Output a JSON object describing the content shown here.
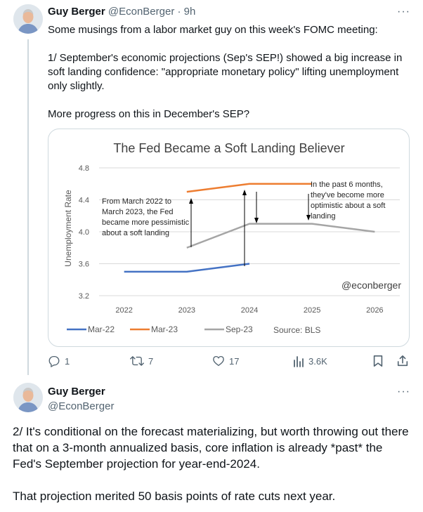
{
  "tweet1": {
    "author_name": "Guy Berger",
    "author_handle": "@EconBerger",
    "separator": "·",
    "time": "9h",
    "more": "···",
    "text": "Some musings from a labor market guy on this week's FOMC meeting:\n\n1/ September's economic projections (Sep's SEP!) showed a big increase in soft landing confidence: \"appropriate monetary policy\" lifting unemployment only slightly.\n\nMore progress on this in December's SEP?",
    "replies": "1",
    "retweets": "7",
    "likes": "17",
    "views": "3.6K"
  },
  "chart_data": {
    "type": "line",
    "title": "The Fed Became a Soft Landing Believer",
    "ylabel": "Unemployment Rate",
    "ylim": [
      3.2,
      4.8
    ],
    "yticks": [
      "4.8",
      "4.4",
      "4.0",
      "3.6",
      "3.2"
    ],
    "ytick_values": [
      4.8,
      4.4,
      4.0,
      3.6,
      3.2
    ],
    "xlim": [
      2021.6,
      2026.4
    ],
    "xticks": [
      "2022",
      "2023",
      "2024",
      "2025",
      "2026"
    ],
    "xtick_values": [
      2022,
      2023,
      2024,
      2025,
      2026
    ],
    "series": [
      {
        "name": "Mar-22",
        "color": "#4472c4",
        "x": [
          2022,
          2023,
          2024
        ],
        "y": [
          3.5,
          3.5,
          3.6
        ]
      },
      {
        "name": "Mar-23",
        "color": "#ed7d31",
        "x": [
          2023,
          2024,
          2025
        ],
        "y": [
          4.5,
          4.6,
          4.6
        ]
      },
      {
        "name": "Sep-23",
        "color": "#a5a5a5",
        "x": [
          2023,
          2024,
          2025,
          2026
        ],
        "y": [
          3.8,
          4.1,
          4.1,
          4.0
        ]
      }
    ],
    "annotation_left": [
      "From March 2022 to",
      "March 2023, the Fed",
      "became more pessimistic",
      "about a soft landing"
    ],
    "annotation_right": [
      "In the past 6 months,",
      "they've become more",
      "optimistic about a soft",
      "landing"
    ],
    "watermark": "@econberger",
    "source": "Source: BLS"
  },
  "tweet2": {
    "author_name": "Guy Berger",
    "author_handle": "@EconBerger",
    "more": "···",
    "text": "2/ It's conditional on the forecast materializing, but worth throwing out there that on a 3-month annualized basis, core inflation is already *past* the Fed's September projection for year-end-2024.\n\nThat projection merited 50 basis points of rate cuts next year."
  },
  "colors": {
    "muted": "#536471",
    "border": "#cfd9de",
    "mar22": "#4472c4",
    "mar23": "#ed7d31",
    "sep23": "#a5a5a5"
  }
}
